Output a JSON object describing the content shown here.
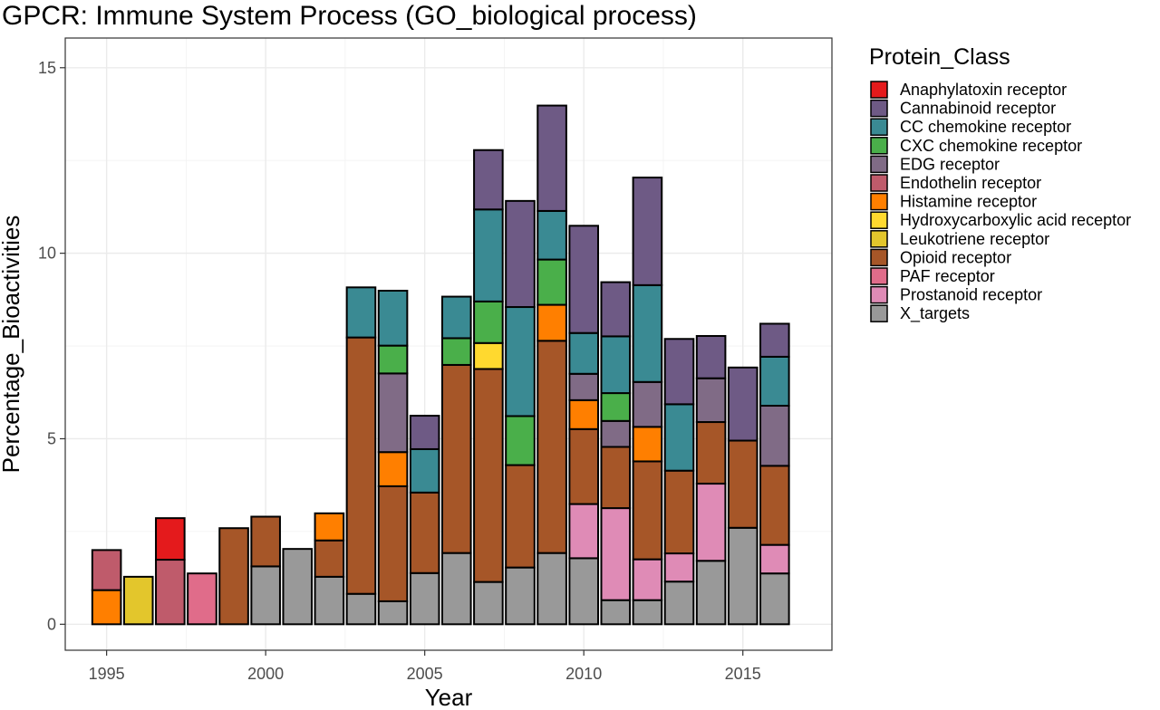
{
  "chart_data": {
    "type": "bar",
    "stacked": true,
    "title": "GPCR: Immune System Process (GO_biological process)",
    "xlabel": "Year",
    "ylabel": "Percentage_Bioactivities",
    "xlim": [
      1993.7,
      2017.8
    ],
    "ylim": [
      -0.7,
      15.8
    ],
    "x_ticks": [
      1995,
      2000,
      2005,
      2010,
      2015
    ],
    "y_ticks": [
      0,
      5,
      10,
      15
    ],
    "grid": true,
    "legend_title": "Protein_Class",
    "legend_position": "right",
    "series": [
      {
        "name": "Anaphylatoxin receptor",
        "color": "#e41a1c"
      },
      {
        "name": "Cannabinoid receptor",
        "color": "#6e5a85"
      },
      {
        "name": "CC chemokine receptor",
        "color": "#3a8a93"
      },
      {
        "name": "CXC chemokine receptor",
        "color": "#4aaf4a"
      },
      {
        "name": "EDG receptor",
        "color": "#806b86"
      },
      {
        "name": "Endothelin receptor",
        "color": "#bf5b6b"
      },
      {
        "name": "Histamine receptor",
        "color": "#ff7f00"
      },
      {
        "name": "Hydroxycarboxylic acid receptor",
        "color": "#ffd92f"
      },
      {
        "name": "Leukotriene receptor",
        "color": "#e3c62c"
      },
      {
        "name": "Opioid receptor",
        "color": "#a65628"
      },
      {
        "name": "PAF receptor",
        "color": "#e06c8a"
      },
      {
        "name": "Prostanoid receptor",
        "color": "#df8bb6"
      },
      {
        "name": "X_targets",
        "color": "#999999"
      }
    ],
    "bars": [
      {
        "year": 1995,
        "segments": [
          [
            "Histamine receptor",
            0.92
          ],
          [
            "Endothelin receptor",
            1.08
          ]
        ]
      },
      {
        "year": 1996,
        "segments": [
          [
            "Leukotriene receptor",
            1.28
          ]
        ]
      },
      {
        "year": 1997,
        "segments": [
          [
            "Endothelin receptor",
            1.74
          ],
          [
            "Anaphylatoxin receptor",
            1.12
          ]
        ]
      },
      {
        "year": 1998,
        "segments": [
          [
            "PAF receptor",
            1.37
          ]
        ]
      },
      {
        "year": 1999,
        "segments": [
          [
            "Opioid receptor",
            2.59
          ]
        ]
      },
      {
        "year": 2000,
        "segments": [
          [
            "X_targets",
            1.56
          ],
          [
            "Opioid receptor",
            1.34
          ]
        ]
      },
      {
        "year": 2001,
        "segments": [
          [
            "X_targets",
            2.03
          ]
        ]
      },
      {
        "year": 2002,
        "segments": [
          [
            "X_targets",
            1.28
          ],
          [
            "Opioid receptor",
            0.98
          ],
          [
            "Histamine receptor",
            0.73
          ]
        ]
      },
      {
        "year": 2003,
        "segments": [
          [
            "X_targets",
            0.82
          ],
          [
            "Opioid receptor",
            6.91
          ],
          [
            "CC chemokine receptor",
            1.35
          ]
        ]
      },
      {
        "year": 2004,
        "segments": [
          [
            "X_targets",
            0.62
          ],
          [
            "Opioid receptor",
            3.1
          ],
          [
            "Histamine receptor",
            0.92
          ],
          [
            "EDG receptor",
            2.12
          ],
          [
            "CXC chemokine receptor",
            0.75
          ],
          [
            "CC chemokine receptor",
            1.48
          ]
        ]
      },
      {
        "year": 2005,
        "segments": [
          [
            "X_targets",
            1.38
          ],
          [
            "Opioid receptor",
            2.17
          ],
          [
            "CC chemokine receptor",
            1.17
          ],
          [
            "Cannabinoid receptor",
            0.9
          ]
        ]
      },
      {
        "year": 2006,
        "segments": [
          [
            "X_targets",
            1.92
          ],
          [
            "Opioid receptor",
            5.07
          ],
          [
            "CXC chemokine receptor",
            0.72
          ],
          [
            "CC chemokine receptor",
            1.12
          ]
        ]
      },
      {
        "year": 2007,
        "segments": [
          [
            "X_targets",
            1.14
          ],
          [
            "Opioid receptor",
            5.74
          ],
          [
            "Hydroxycarboxylic acid receptor",
            0.7
          ],
          [
            "CXC chemokine receptor",
            1.12
          ],
          [
            "CC chemokine receptor",
            2.48
          ],
          [
            "Cannabinoid receptor",
            1.6
          ]
        ]
      },
      {
        "year": 2008,
        "segments": [
          [
            "X_targets",
            1.53
          ],
          [
            "Opioid receptor",
            2.76
          ],
          [
            "CXC chemokine receptor",
            1.32
          ],
          [
            "CC chemokine receptor",
            2.94
          ],
          [
            "Cannabinoid receptor",
            2.86
          ]
        ]
      },
      {
        "year": 2009,
        "segments": [
          [
            "X_targets",
            1.92
          ],
          [
            "Opioid receptor",
            5.72
          ],
          [
            "Histamine receptor",
            0.97
          ],
          [
            "CXC chemokine receptor",
            1.22
          ],
          [
            "CC chemokine receptor",
            1.31
          ],
          [
            "Cannabinoid receptor",
            2.84
          ]
        ]
      },
      {
        "year": 2010,
        "segments": [
          [
            "X_targets",
            1.78
          ],
          [
            "Prostanoid receptor",
            1.46
          ],
          [
            "Opioid receptor",
            2.02
          ],
          [
            "Histamine receptor",
            0.78
          ],
          [
            "EDG receptor",
            0.71
          ],
          [
            "CC chemokine receptor",
            1.1
          ],
          [
            "Cannabinoid receptor",
            2.89
          ]
        ]
      },
      {
        "year": 2011,
        "segments": [
          [
            "X_targets",
            0.65
          ],
          [
            "Prostanoid receptor",
            2.48
          ],
          [
            "Opioid receptor",
            1.65
          ],
          [
            "EDG receptor",
            0.7
          ],
          [
            "CXC chemokine receptor",
            0.75
          ],
          [
            "CC chemokine receptor",
            1.53
          ],
          [
            "Cannabinoid receptor",
            1.46
          ]
        ]
      },
      {
        "year": 2012,
        "segments": [
          [
            "X_targets",
            0.65
          ],
          [
            "Prostanoid receptor",
            1.1
          ],
          [
            "Opioid receptor",
            2.64
          ],
          [
            "Histamine receptor",
            0.93
          ],
          [
            "EDG receptor",
            1.21
          ],
          [
            "CC chemokine receptor",
            2.61
          ],
          [
            "Cannabinoid receptor",
            2.9
          ]
        ]
      },
      {
        "year": 2013,
        "segments": [
          [
            "X_targets",
            1.15
          ],
          [
            "Prostanoid receptor",
            0.76
          ],
          [
            "Opioid receptor",
            2.23
          ],
          [
            "CC chemokine receptor",
            1.79
          ],
          [
            "Cannabinoid receptor",
            1.76
          ]
        ]
      },
      {
        "year": 2014,
        "segments": [
          [
            "X_targets",
            1.71
          ],
          [
            "Prostanoid receptor",
            2.08
          ],
          [
            "Opioid receptor",
            1.66
          ],
          [
            "EDG receptor",
            1.18
          ],
          [
            "Cannabinoid receptor",
            1.14
          ]
        ]
      },
      {
        "year": 2015,
        "segments": [
          [
            "X_targets",
            2.6
          ],
          [
            "Opioid receptor",
            2.35
          ],
          [
            "Cannabinoid receptor",
            1.97
          ]
        ]
      },
      {
        "year": 2016,
        "segments": [
          [
            "X_targets",
            1.37
          ],
          [
            "Prostanoid receptor",
            0.77
          ],
          [
            "Opioid receptor",
            2.13
          ],
          [
            "EDG receptor",
            1.62
          ],
          [
            "CC chemokine receptor",
            1.32
          ],
          [
            "Cannabinoid receptor",
            0.89
          ]
        ]
      }
    ]
  }
}
